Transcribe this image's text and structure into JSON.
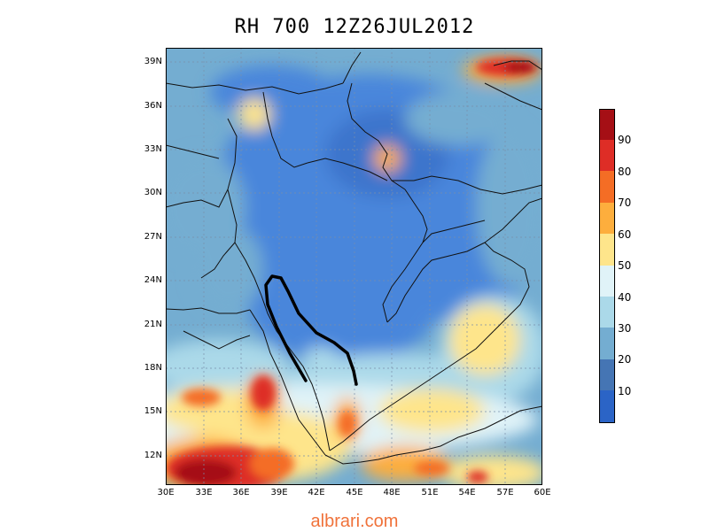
{
  "title": "RH 700  12Z26JUL2012",
  "footer_text": "albrari.com",
  "lat_labels": [
    "39N",
    "36N",
    "33N",
    "30N",
    "27N",
    "24N",
    "21N",
    "18N",
    "15N",
    "12N"
  ],
  "lon_labels": [
    "30E",
    "33E",
    "36E",
    "39E",
    "42E",
    "45E",
    "48E",
    "51E",
    "54E",
    "57E",
    "60E"
  ],
  "colorbar": {
    "labels": [
      "90",
      "80",
      "70",
      "60",
      "50",
      "40",
      "30",
      "20",
      "10"
    ],
    "colors": [
      "#a50f15",
      "#de2d26",
      "#f46d25",
      "#fdae3d",
      "#fee58b",
      "#e0f3f8",
      "#abd9e9",
      "#74add1",
      "#4575b4",
      "#2b64c6"
    ]
  },
  "legend_colors": {
    "lowest": "#2b64c6",
    "low": "#4a86db",
    "midlow": "#74add1",
    "mid": "#abd9e9",
    "neutral": "#e0f3f8",
    "yellow": "#fee58b",
    "orange": "#fdae3d",
    "darkorange": "#f46d25",
    "red": "#de2d26",
    "darkred": "#a50f15"
  }
}
